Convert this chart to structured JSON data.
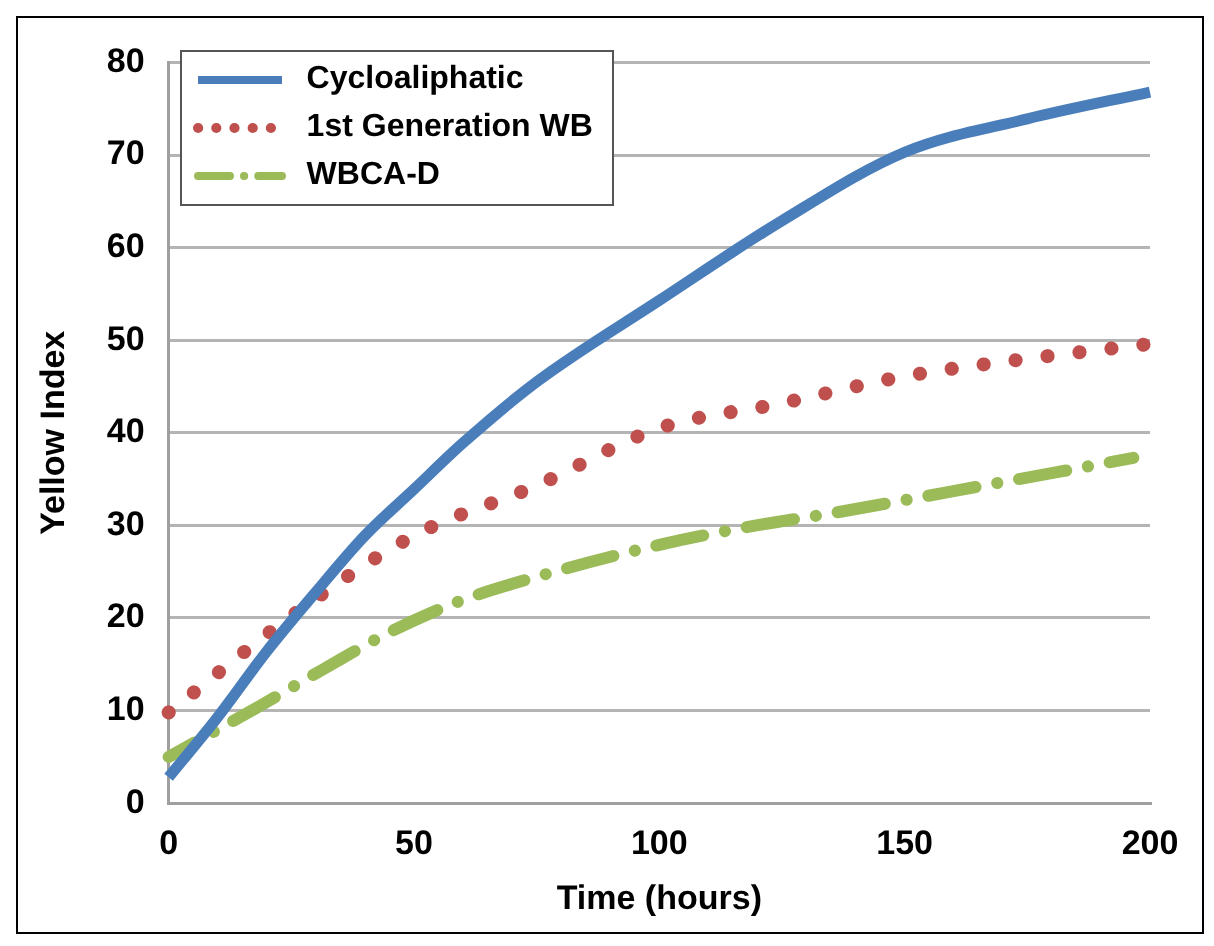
{
  "chart_data": {
    "type": "line",
    "xlabel": "Time (hours)",
    "ylabel": "Yellow Index",
    "xlim": [
      0,
      200
    ],
    "xticks": [
      0,
      50,
      100,
      150,
      200
    ],
    "ylim": [
      0,
      80
    ],
    "yticks": [
      0,
      10,
      20,
      30,
      40,
      50,
      60,
      70,
      80
    ],
    "grid": "y",
    "legend": "top left",
    "marker": "none",
    "series": [
      {
        "name": "Cycloaliphatic",
        "color": "#4a7ebb",
        "line_style": "solid",
        "x": [
          0,
          10,
          20,
          30,
          40,
          50,
          60,
          75,
          100,
          125,
          150,
          175,
          200
        ],
        "values": [
          2.8,
          9.3,
          16.4,
          22.8,
          28.9,
          33.9,
          38.9,
          45.5,
          54.3,
          62.9,
          70.3,
          73.9,
          76.8
        ]
      },
      {
        "name": "1st Generation WB",
        "color": "#c0504d",
        "line_style": "dotted",
        "x": [
          0,
          25,
          50,
          75,
          100,
          125,
          150,
          175,
          200
        ],
        "values": [
          9.8,
          20.2,
          28.9,
          34.3,
          40.5,
          43.2,
          46.1,
          48,
          49.6
        ]
      },
      {
        "name": "WBCA-D",
        "color": "#9bbb59",
        "line_style": "dashdot",
        "x": [
          0,
          17.6,
          31.3,
          44.8,
          59.2,
          74,
          100,
          119.8,
          135,
          150.7,
          166,
          181.6,
          196.6
        ],
        "values": [
          5,
          10.2,
          14.4,
          18.4,
          21.8,
          24.3,
          27.9,
          30,
          31.3,
          32.8,
          34.3,
          35.8,
          37.3
        ]
      }
    ]
  }
}
